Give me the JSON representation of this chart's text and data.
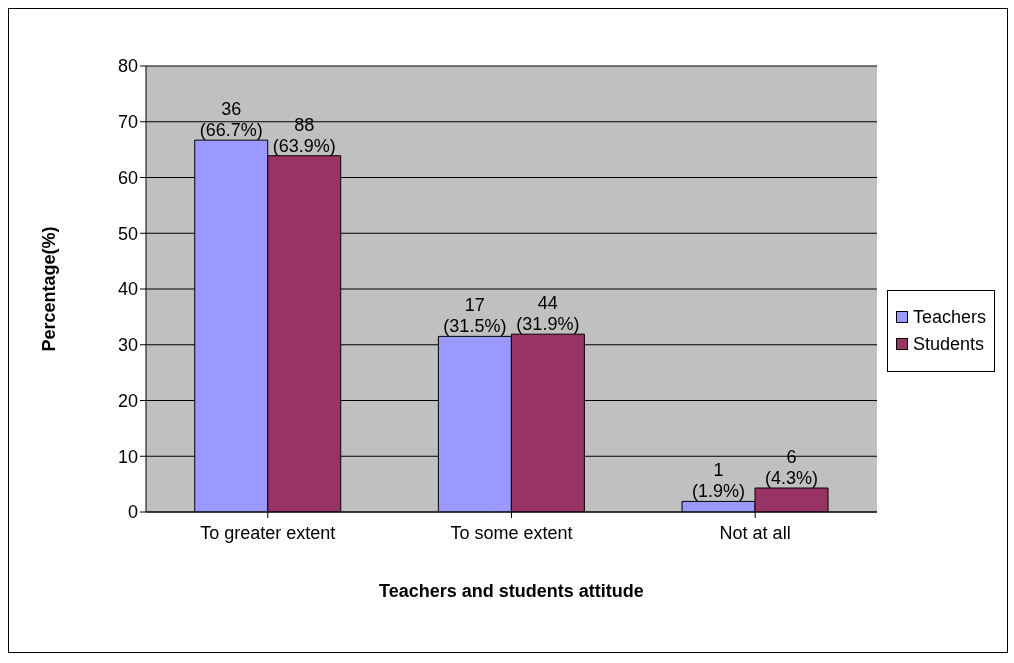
{
  "chart_data": {
    "type": "bar",
    "xlabel": "Teachers and students attitude",
    "ylabel": "Percentage(%)",
    "categories": [
      "To greater extent",
      "To some extent",
      "Not at all"
    ],
    "series": [
      {
        "name": "Teachers",
        "color": "#9999ff",
        "values": [
          66.7,
          31.5,
          1.9
        ],
        "value_labels": [
          "36 (66.7%)",
          "17 (31.5%)",
          "1 (1.9%)"
        ]
      },
      {
        "name": "Students",
        "color": "#993366",
        "values": [
          63.9,
          31.9,
          4.3
        ],
        "value_labels": [
          "88 (63.9%)",
          "44 (31.9%)",
          "6 (4.3%)"
        ]
      }
    ],
    "ylim": [
      0,
      80
    ],
    "yticks": [
      0,
      10,
      20,
      30,
      40,
      50,
      60,
      70,
      80
    ],
    "grid": "y",
    "legend": "right"
  }
}
